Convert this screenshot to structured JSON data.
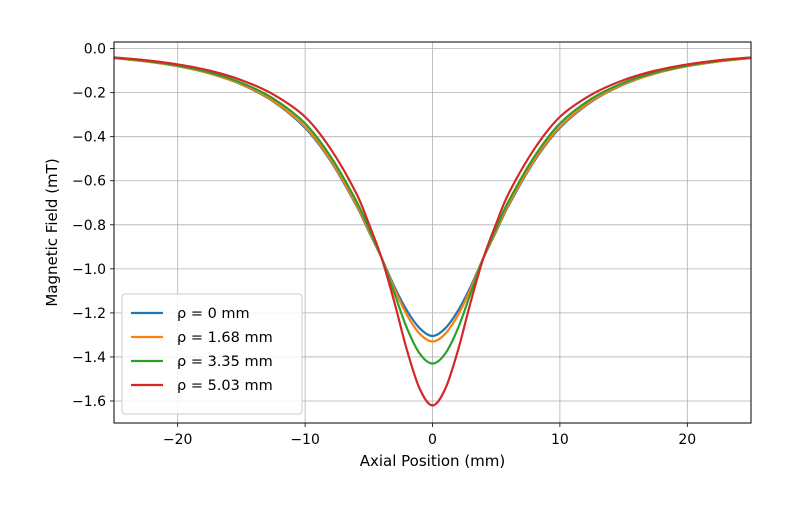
{
  "chart_data": {
    "type": "line",
    "title": "",
    "xlabel": "Axial Position (mm)",
    "ylabel": "Magnetic Field (mT)",
    "xlim": [
      -25,
      25
    ],
    "ylim": [
      -1.7,
      0.03
    ],
    "grid": true,
    "legend_position": "lower-left",
    "x_ticks": [
      -20,
      -10,
      0,
      10,
      20
    ],
    "x_tick_labels": [
      "−20",
      "−10",
      "0",
      "10",
      "20"
    ],
    "y_ticks": [
      0.0,
      -0.2,
      -0.4,
      -0.6,
      -0.8,
      -1.0,
      -1.2,
      -1.4,
      -1.6
    ],
    "y_tick_labels": [
      "0.0",
      "−0.2",
      "−0.4",
      "−0.6",
      "−0.8",
      "−1.0",
      "−1.2",
      "−1.4",
      "−1.6"
    ],
    "x": [
      -25,
      -22.5,
      -20,
      -17.5,
      -15,
      -12.5,
      -10,
      -8,
      -6,
      -5,
      -4,
      -3,
      -2,
      -1,
      0,
      1,
      2,
      3,
      4,
      5,
      6,
      8,
      10,
      12.5,
      15,
      17.5,
      20,
      22.5,
      25
    ],
    "series": [
      {
        "name": "ρ = 0 mm",
        "color": "#1f77b4",
        "values": [
          -0.043,
          -0.058,
          -0.08,
          -0.113,
          -0.163,
          -0.24,
          -0.36,
          -0.51,
          -0.71,
          -0.83,
          -0.95,
          -1.08,
          -1.19,
          -1.27,
          -1.305,
          -1.27,
          -1.19,
          -1.08,
          -0.95,
          -0.83,
          -0.71,
          -0.51,
          -0.36,
          -0.24,
          -0.163,
          -0.113,
          -0.08,
          -0.058,
          -0.043
        ]
      },
      {
        "name": "ρ = 1.68 mm",
        "color": "#ff7f0e",
        "values": [
          -0.043,
          -0.058,
          -0.079,
          -0.112,
          -0.161,
          -0.237,
          -0.355,
          -0.505,
          -0.705,
          -0.825,
          -0.95,
          -1.09,
          -1.21,
          -1.295,
          -1.33,
          -1.295,
          -1.21,
          -1.09,
          -0.95,
          -0.825,
          -0.705,
          -0.505,
          -0.355,
          -0.237,
          -0.161,
          -0.112,
          -0.079,
          -0.058,
          -0.043
        ]
      },
      {
        "name": "ρ = 3.35 mm",
        "color": "#2ca02c",
        "values": [
          -0.042,
          -0.056,
          -0.077,
          -0.108,
          -0.155,
          -0.227,
          -0.34,
          -0.49,
          -0.69,
          -0.815,
          -0.95,
          -1.11,
          -1.27,
          -1.385,
          -1.43,
          -1.385,
          -1.27,
          -1.11,
          -0.95,
          -0.815,
          -0.69,
          -0.49,
          -0.34,
          -0.227,
          -0.155,
          -0.108,
          -0.077,
          -0.056,
          -0.042
        ]
      },
      {
        "name": "ρ = 5.03 mm",
        "color": "#d62728",
        "values": [
          -0.04,
          -0.053,
          -0.072,
          -0.1,
          -0.143,
          -0.208,
          -0.31,
          -0.455,
          -0.655,
          -0.795,
          -0.95,
          -1.15,
          -1.37,
          -1.545,
          -1.62,
          -1.545,
          -1.37,
          -1.15,
          -0.95,
          -0.795,
          -0.655,
          -0.455,
          -0.31,
          -0.208,
          -0.143,
          -0.1,
          -0.072,
          -0.053,
          -0.04
        ]
      }
    ]
  }
}
